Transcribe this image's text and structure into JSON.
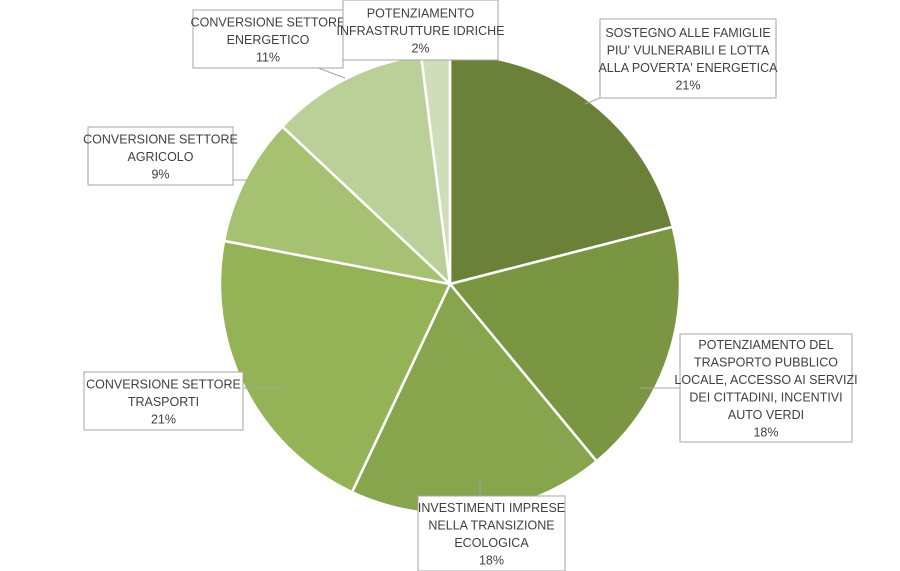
{
  "chart_data": {
    "type": "pie",
    "title": "",
    "slices": [
      {
        "label": [
          "SOSTEGNO ALLE FAMIGLIE",
          "PIU' VULNERABILI E LOTTA",
          "ALLA POVERTA' ENERGETICA"
        ],
        "value": 21,
        "value_label": "21%",
        "color": "#6b8139"
      },
      {
        "label": [
          "POTENZIAMENTO DEL",
          "TRASPORTO PUBBLICO",
          "LOCALE, ACCESSO AI SERVIZI",
          "DEI CITTADINI, INCENTIVI",
          "AUTO VERDI"
        ],
        "value": 18,
        "value_label": "18%",
        "color": "#7b9642"
      },
      {
        "label": [
          "INVESTIMENTI IMPRESE",
          "NELLA TRANSIZIONE",
          "ECOLOGICA"
        ],
        "value": 18,
        "value_label": "18%",
        "color": "#87a54d"
      },
      {
        "label": [
          "CONVERSIONE SETTORE",
          "TRASPORTI"
        ],
        "value": 21,
        "value_label": "21%",
        "color": "#94b357"
      },
      {
        "label": [
          "CONVERSIONE SETTORE",
          "AGRICOLO"
        ],
        "value": 9,
        "value_label": "9%",
        "color": "#a6c172"
      },
      {
        "label": [
          "CONVERSIONE SETTORE",
          "ENERGETICO"
        ],
        "value": 11,
        "value_label": "11%",
        "color": "#bbd098"
      },
      {
        "label": [
          "POTENZIAMENTO",
          "INFRASTRUTTURE IDRICHE"
        ],
        "value": 2,
        "value_label": "2%",
        "color": "#cfdeb8"
      }
    ]
  }
}
